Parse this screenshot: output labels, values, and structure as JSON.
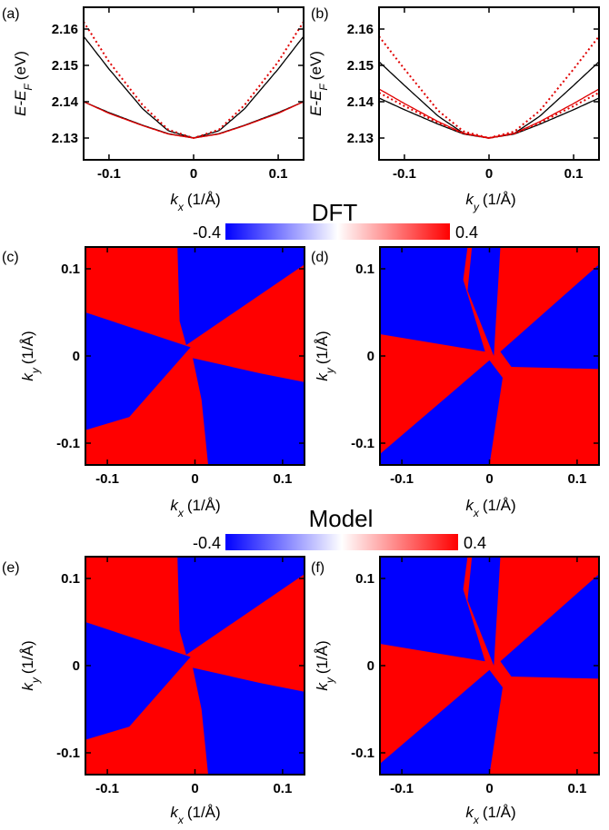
{
  "figure": {
    "panel_labels": [
      "(a)",
      "(b)",
      "(c)",
      "(d)",
      "(e)",
      "(f)"
    ],
    "colorbars": [
      {
        "title": "DFT",
        "min_label": "-0.4",
        "max_label": "0.4",
        "min": -0.4,
        "max": 0.4
      },
      {
        "title": "Model",
        "min_label": "-0.4",
        "max_label": "0.4",
        "min": -0.4,
        "max": 0.4
      }
    ],
    "colors": {
      "negative": "#0000ff",
      "positive": "#ff0000",
      "mid": "#ffffff",
      "black": "#000000",
      "red": "#e00000"
    }
  },
  "chart_data": [
    {
      "panel": "(a)",
      "type": "line",
      "xlabel_main": "k",
      "xlabel_sub": "x",
      "xlabel_unit": "(1/Å)",
      "ylabel_main": "E-E",
      "ylabel_sub": "F",
      "ylabel_unit": "(eV)",
      "xlim": [
        -0.13,
        0.13
      ],
      "ylim": [
        2.124,
        2.166
      ],
      "xticks": [
        -0.1,
        0,
        0.1
      ],
      "xtick_labels": [
        "-0.1",
        "0",
        "0.1"
      ],
      "yticks": [
        2.13,
        2.14,
        2.15,
        2.16
      ],
      "ytick_labels": [
        "2.13",
        "2.14",
        "2.15",
        "2.16"
      ],
      "series": [
        {
          "style": "solid",
          "color": "#000000",
          "x": [
            -0.13,
            -0.1,
            -0.06,
            -0.03,
            0,
            0.03,
            0.06,
            0.1,
            0.13
          ],
          "y": [
            2.158,
            2.149,
            2.138,
            2.132,
            2.13,
            2.132,
            2.138,
            2.149,
            2.158
          ]
        },
        {
          "style": "solid",
          "color": "#000000",
          "x": [
            -0.13,
            -0.1,
            -0.06,
            -0.03,
            0,
            0.03,
            0.06,
            0.1,
            0.13
          ],
          "y": [
            2.14,
            2.137,
            2.1335,
            2.1312,
            2.13,
            2.1312,
            2.1335,
            2.137,
            2.14
          ]
        },
        {
          "style": "dotted",
          "color": "#e00000",
          "x": [
            -0.13,
            -0.1,
            -0.06,
            -0.03,
            0,
            0.03,
            0.06,
            0.1,
            0.13
          ],
          "y": [
            2.162,
            2.151,
            2.139,
            2.1323,
            2.13,
            2.1323,
            2.139,
            2.151,
            2.162
          ]
        },
        {
          "style": "solid",
          "color": "#e00000",
          "x": [
            -0.13,
            -0.1,
            -0.06,
            -0.03,
            0,
            0.03,
            0.06,
            0.1,
            0.13
          ],
          "y": [
            2.14,
            2.1368,
            2.1334,
            2.1311,
            2.13,
            2.1311,
            2.1334,
            2.1368,
            2.14
          ]
        }
      ]
    },
    {
      "panel": "(b)",
      "type": "line",
      "xlabel_main": "k",
      "xlabel_sub": "y",
      "xlabel_unit": "(1/Å)",
      "ylabel_main": "E-E",
      "ylabel_sub": "F",
      "ylabel_unit": "(eV)",
      "xlim": [
        -0.13,
        0.13
      ],
      "ylim": [
        2.124,
        2.166
      ],
      "xticks": [
        -0.1,
        0,
        0.1
      ],
      "xtick_labels": [
        "-0.1",
        "0",
        "0.1"
      ],
      "yticks": [
        2.13,
        2.14,
        2.15,
        2.16
      ],
      "ytick_labels": [
        "2.13",
        "2.14",
        "2.15",
        "2.16"
      ],
      "series": [
        {
          "style": "solid",
          "color": "#000000",
          "x": [
            -0.13,
            -0.1,
            -0.06,
            -0.03,
            0,
            0.03,
            0.06,
            0.1,
            0.13
          ],
          "y": [
            2.151,
            2.1445,
            2.136,
            2.1313,
            2.13,
            2.1313,
            2.136,
            2.1445,
            2.151
          ]
        },
        {
          "style": "solid",
          "color": "#000000",
          "x": [
            -0.13,
            -0.1,
            -0.06,
            -0.03,
            0,
            0.03,
            0.06,
            0.1,
            0.13
          ],
          "y": [
            2.141,
            2.1378,
            2.1338,
            2.1311,
            2.13,
            2.1311,
            2.1338,
            2.1378,
            2.141
          ]
        },
        {
          "style": "dotted",
          "color": "#e00000",
          "x": [
            -0.13,
            -0.1,
            -0.06,
            -0.03,
            0,
            0.03,
            0.06,
            0.1,
            0.13
          ],
          "y": [
            2.158,
            2.149,
            2.1375,
            2.1318,
            2.13,
            2.1318,
            2.1375,
            2.149,
            2.158
          ]
        },
        {
          "style": "solid",
          "color": "#e00000",
          "x": [
            -0.13,
            -0.1,
            -0.06,
            -0.03,
            0,
            0.03,
            0.06,
            0.1,
            0.13
          ],
          "y": [
            2.1435,
            2.1395,
            2.1345,
            2.1313,
            2.13,
            2.1313,
            2.1345,
            2.1395,
            2.1435
          ]
        },
        {
          "style": "dotted",
          "color": "#e00000",
          "x": [
            -0.13,
            -0.1,
            -0.06,
            -0.03,
            0,
            0.03,
            0.06,
            0.1,
            0.13
          ],
          "y": [
            2.1425,
            2.1388,
            2.1342,
            2.1312,
            2.13,
            2.1312,
            2.1342,
            2.1388,
            2.1425
          ]
        }
      ]
    },
    {
      "panel": "(c)",
      "type": "heatmap",
      "pattern": "c",
      "xlabel_main": "k",
      "xlabel_sub": "x",
      "xlabel_unit": "(1/Å)",
      "ylabel_main": "k",
      "ylabel_sub": "y",
      "ylabel_unit": "(1/Å)",
      "xlim": [
        -0.125,
        0.125
      ],
      "ylim": [
        -0.125,
        0.125
      ],
      "xticks": [
        -0.1,
        0,
        0.1
      ],
      "xtick_labels": [
        "-0.1",
        "0",
        "0.1"
      ],
      "yticks": [
        -0.1,
        0,
        0.1
      ],
      "ytick_labels": [
        "-0.1",
        "0",
        "0.1"
      ],
      "value_range": [
        -0.4,
        0.4
      ]
    },
    {
      "panel": "(d)",
      "type": "heatmap",
      "pattern": "d",
      "xlabel_main": "k",
      "xlabel_sub": "x",
      "xlabel_unit": "(1/Å)",
      "ylabel_main": "k",
      "ylabel_sub": "y",
      "ylabel_unit": "(1/Å)",
      "xlim": [
        -0.125,
        0.125
      ],
      "ylim": [
        -0.125,
        0.125
      ],
      "xticks": [
        -0.1,
        0,
        0.1
      ],
      "xtick_labels": [
        "-0.1",
        "0",
        "0.1"
      ],
      "yticks": [
        -0.1,
        0,
        0.1
      ],
      "ytick_labels": [
        "-0.1",
        "0",
        "0.1"
      ],
      "value_range": [
        -0.4,
        0.4
      ]
    },
    {
      "panel": "(e)",
      "type": "heatmap",
      "pattern": "c",
      "xlabel_main": "k",
      "xlabel_sub": "x",
      "xlabel_unit": "(1/Å)",
      "ylabel_main": "k",
      "ylabel_sub": "y",
      "ylabel_unit": "(1/Å)",
      "xlim": [
        -0.125,
        0.125
      ],
      "ylim": [
        -0.125,
        0.125
      ],
      "xticks": [
        -0.1,
        0,
        0.1
      ],
      "xtick_labels": [
        "-0.1",
        "0",
        "0.1"
      ],
      "yticks": [
        -0.1,
        0,
        0.1
      ],
      "ytick_labels": [
        "-0.1",
        "0",
        "0.1"
      ],
      "value_range": [
        -0.4,
        0.4
      ]
    },
    {
      "panel": "(f)",
      "type": "heatmap",
      "pattern": "d",
      "xlabel_main": "k",
      "xlabel_sub": "x",
      "xlabel_unit": "(1/Å)",
      "ylabel_main": "k",
      "ylabel_sub": "y",
      "ylabel_unit": "(1/Å)",
      "xlim": [
        -0.125,
        0.125
      ],
      "ylim": [
        -0.125,
        0.125
      ],
      "xticks": [
        -0.1,
        0,
        0.1
      ],
      "xtick_labels": [
        "-0.1",
        "0",
        "0.1"
      ],
      "yticks": [
        -0.1,
        0,
        0.1
      ],
      "ytick_labels": [
        "-0.1",
        "0",
        "0.1"
      ],
      "value_range": [
        -0.4,
        0.4
      ]
    }
  ]
}
